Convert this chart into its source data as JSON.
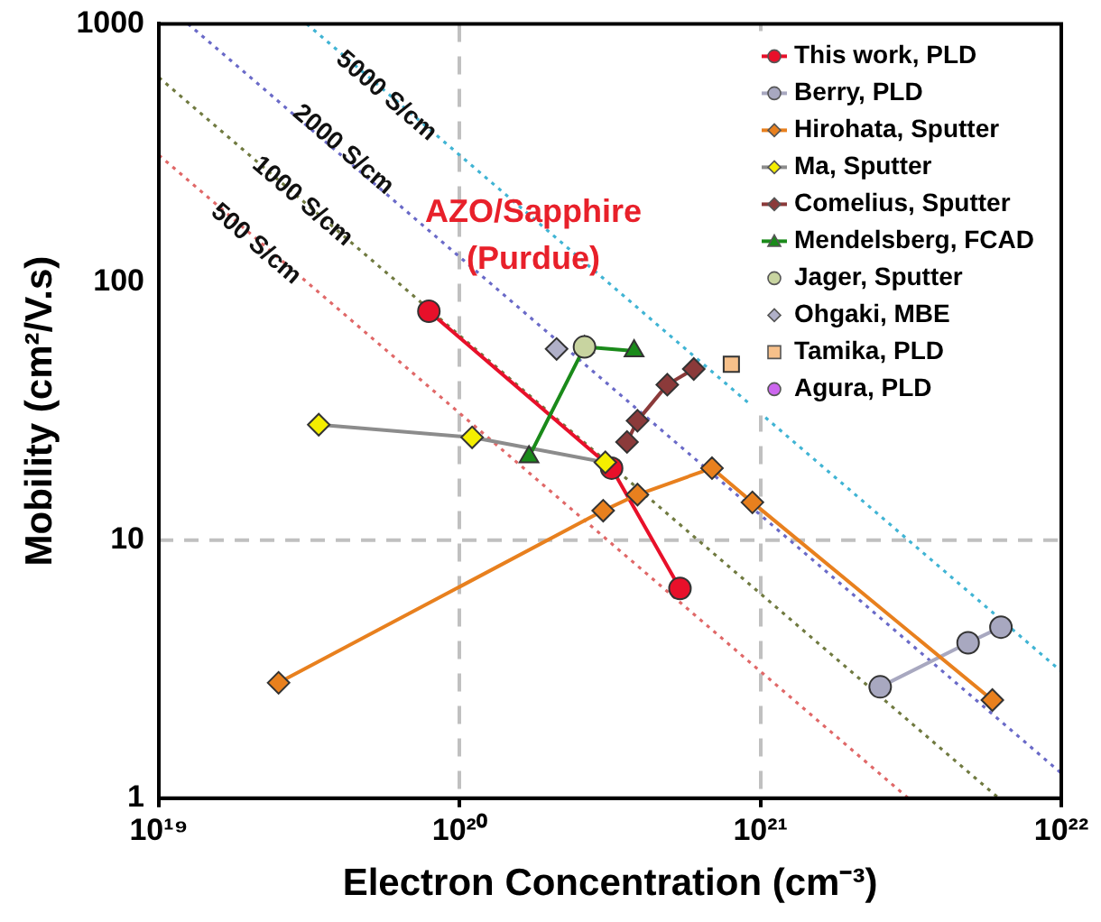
{
  "chart_data": {
    "type": "line",
    "xlabel": "Electron Concentration (cm⁻³)",
    "ylabel": "Mobility (cm²/V.s)",
    "log": "xy",
    "xlim": [
      1e+19,
      1e+22
    ],
    "ylim": [
      1,
      1000
    ],
    "xticks": [
      {
        "value": 1e+19,
        "label": "10¹⁹"
      },
      {
        "value": 1e+20,
        "label": "10²⁰"
      },
      {
        "value": 1e+21,
        "label": "10²¹"
      },
      {
        "value": 1e+22,
        "label": "10²²"
      }
    ],
    "yticks": [
      1,
      10,
      100,
      1000
    ],
    "grid": "x",
    "legend": "top right",
    "ref_lines": [
      {
        "axis": "y",
        "value": 10,
        "color": "#c0c0c0",
        "line_style": "dashed"
      }
    ],
    "annotations": [
      "AZO/Sapphire\n(Purdue)",
      {
        "text": "5000 S/cm",
        "x": 5.7e+19,
        "y": 525
      },
      {
        "text": "2000 S/cm",
        "x": 4.1e+19,
        "y": 325
      },
      {
        "text": "1000 S/cm",
        "x": 3e+19,
        "y": 205
      },
      {
        "text": "500 S/cm",
        "x": 2.1e+19,
        "y": 140
      }
    ],
    "series": [
      {
        "type": "line",
        "color": "#e06868",
        "marker": "none",
        "line_style": "dotted",
        "x": [
          1e+19,
          3.1e+21
        ],
        "values": [
          310,
          1
        ]
      },
      {
        "type": "line",
        "color": "#707a40",
        "marker": "none",
        "line_style": "dotted",
        "x": [
          1e+19,
          6.2e+21
        ],
        "values": [
          620,
          1
        ]
      },
      {
        "type": "line",
        "color": "#6a6ac8",
        "marker": "none",
        "line_style": "dotted",
        "x": [
          1.25e+19,
          1e+22
        ],
        "values": [
          1000,
          1.25
        ]
      },
      {
        "type": "line",
        "color": "#40b4d4",
        "marker": "none",
        "line_style": "dotted",
        "x": [
          3.1e+19,
          1e+22
        ],
        "values": [
          1000,
          3.1
        ]
      },
      {
        "name": "This work, PLD",
        "color": "#e8102a",
        "marker": "circle",
        "x": [
          7.9e+19,
          3.2e+20,
          5.4e+20
        ],
        "values": [
          77,
          19,
          6.5
        ]
      },
      {
        "name": "Berry, PLD",
        "color": "#a8a8c0",
        "marker": "circle",
        "x": [
          2.5e+21,
          4.9e+21,
          6.3e+21
        ],
        "values": [
          2.7,
          4.0,
          4.6
        ]
      },
      {
        "name": "Hirohata, Sputter",
        "type": "line",
        "color": "#e8801e",
        "marker": "diamond",
        "x": [
          2.5e+19,
          3e+20,
          3.9e+20,
          6.9e+20,
          9.4e+20,
          5.9e+21
        ],
        "values": [
          2.8,
          13,
          15,
          19,
          14,
          2.4
        ]
      },
      {
        "name": "Ma, Sputter",
        "type": "line",
        "color": "#8c8c8c",
        "colors": [
          "#f4ee00",
          "#f4ee00",
          "#f4ee00"
        ],
        "marker": "diamond",
        "x": [
          3.4e+19,
          1.1e+20,
          3.05e+20
        ],
        "values": [
          28,
          25,
          20
        ]
      },
      {
        "name": "Comelius, Sputter",
        "type": "line",
        "color": "#8b3a3a",
        "marker": "diamond",
        "x": [
          3.6e+20,
          3.9e+20,
          4.9e+20,
          6e+20
        ],
        "values": [
          24,
          29,
          40,
          46
        ]
      },
      {
        "name": "Mendelsberg, FCAD",
        "type": "line",
        "color": "#1a8a1a",
        "marker": "triangle",
        "x": [
          1.7e+20,
          2.6e+20,
          3.8e+20
        ],
        "values": [
          21,
          56,
          54
        ]
      },
      {
        "name": "Jager, Sputter",
        "type": "scatter",
        "color": "#c8d4a0",
        "marker": "circle",
        "x": [
          2.6e+20
        ],
        "values": [
          56
        ]
      },
      {
        "name": "Ohgaki, MBE",
        "type": "scatter",
        "color": "#b0b0c8",
        "marker": "diamond",
        "x": [
          2.1e+20
        ],
        "values": [
          55
        ]
      },
      {
        "name": "Tamika, PLD",
        "type": "scatter",
        "color": "#f7c08a",
        "marker": "square",
        "x": [
          8e+20
        ],
        "values": [
          48
        ]
      },
      {
        "name": "Agura, PLD",
        "type": "scatter",
        "color": "#cc66ee",
        "marker": "circle"
      }
    ]
  }
}
